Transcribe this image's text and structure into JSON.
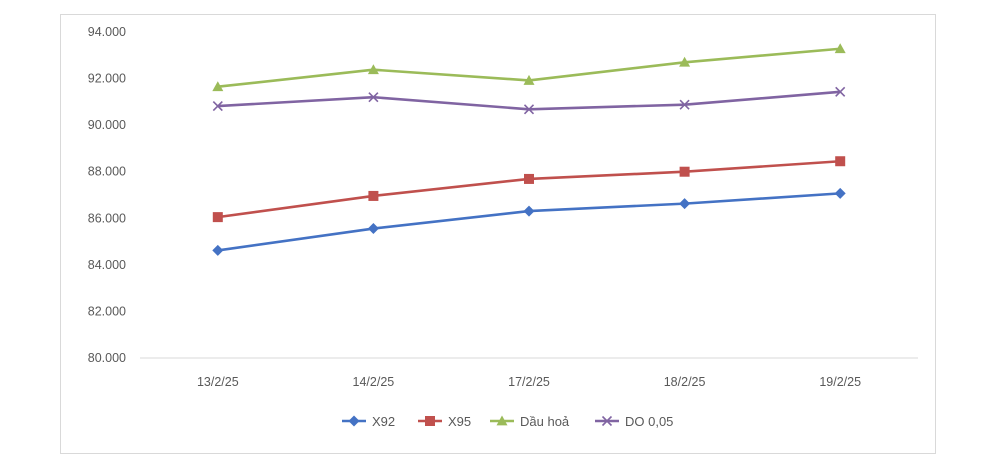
{
  "chart_data": {
    "type": "line",
    "title": "",
    "xlabel": "",
    "ylabel": "",
    "categories": [
      "13/2/25",
      "14/2/25",
      "17/2/25",
      "18/2/25",
      "19/2/25"
    ],
    "ylim": [
      80000,
      94000
    ],
    "yticks": [
      80000,
      82000,
      84000,
      86000,
      88000,
      90000,
      92000,
      94000
    ],
    "ytick_labels": [
      "80.000",
      "82.000",
      "84.000",
      "86.000",
      "88.000",
      "90.000",
      "92.000",
      "94.000"
    ],
    "grid": false,
    "legend": "bottom",
    "series": [
      {
        "name": "X92",
        "color": "#4472c4",
        "marker": "diamond",
        "values": [
          84620,
          85560,
          86310,
          86630,
          87070
        ]
      },
      {
        "name": "X95",
        "color": "#c0504d",
        "marker": "square",
        "values": [
          86050,
          86960,
          87690,
          88000,
          88450
        ]
      },
      {
        "name": "Dầu hoả",
        "color": "#9bbb59",
        "marker": "triangle",
        "values": [
          91650,
          92380,
          91920,
          92700,
          93280
        ]
      },
      {
        "name": "DO 0,05",
        "color": "#8064a2",
        "marker": "star",
        "values": [
          90820,
          91200,
          90680,
          90880,
          91430
        ]
      }
    ]
  }
}
